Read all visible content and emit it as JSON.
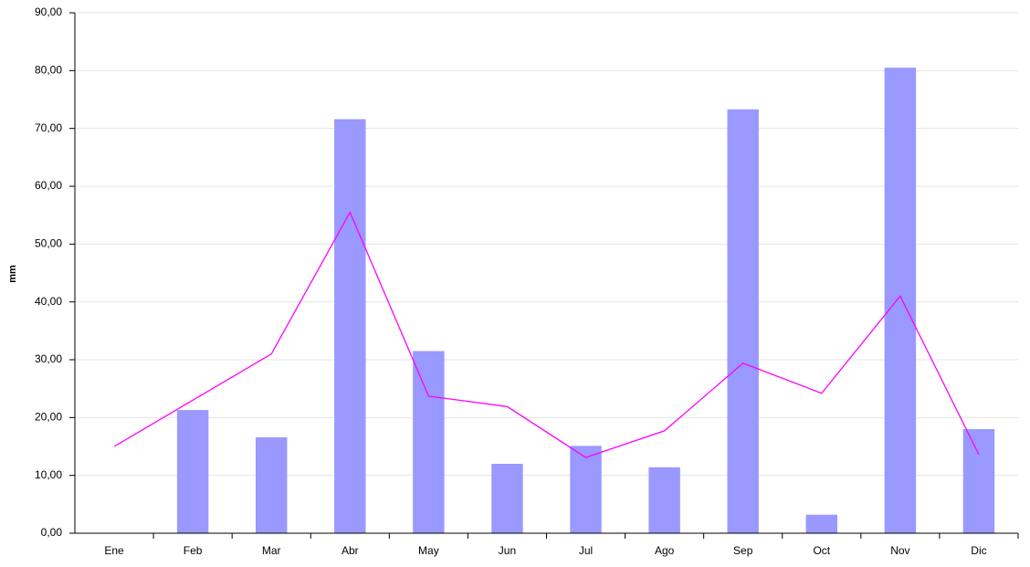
{
  "chart_data": {
    "type": "bar",
    "y_label": "mm",
    "categories": [
      "Ene",
      "Feb",
      "Mar",
      "Abr",
      "May",
      "Jun",
      "Jul",
      "Ago",
      "Sep",
      "Oct",
      "Nov",
      "Dic"
    ],
    "series": [
      {
        "type": "bar",
        "color": "#9999ff",
        "values": [
          0,
          21.3,
          16.6,
          71.6,
          31.5,
          12.0,
          15.1,
          11.4,
          73.3,
          3.2,
          80.5,
          18.0
        ]
      },
      {
        "type": "line",
        "color": "#ff00ff",
        "values": [
          15.0,
          23.0,
          31.0,
          55.5,
          23.7,
          21.9,
          13.1,
          17.7,
          29.4,
          24.2,
          41.0,
          13.6
        ]
      }
    ],
    "ylim": [
      0,
      90
    ],
    "yticks": [
      {
        "value": 0,
        "label": "0,00"
      },
      {
        "value": 10,
        "label": "10,00"
      },
      {
        "value": 20,
        "label": "20,00"
      },
      {
        "value": 30,
        "label": "30,00"
      },
      {
        "value": 40,
        "label": "40,00"
      },
      {
        "value": 50,
        "label": "50,00"
      },
      {
        "value": 60,
        "label": "60,00"
      },
      {
        "value": 70,
        "label": "70,00"
      },
      {
        "value": 80,
        "label": "80,00"
      },
      {
        "value": 90,
        "label": "90,00"
      }
    ],
    "grid": true
  }
}
